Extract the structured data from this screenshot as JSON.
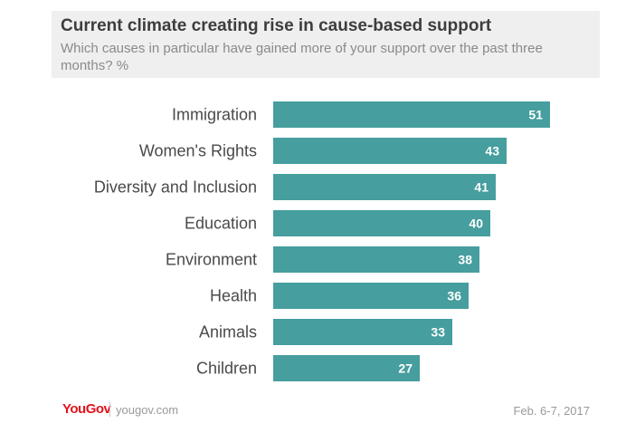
{
  "title": "Current climate creating rise in cause-based support",
  "subtitle": "Which causes in particular have gained more of your support over the past three months? %",
  "footer": {
    "brand": "YouGov",
    "url": "yougov.com",
    "date": "Feb. 6-7, 2017"
  },
  "colors": {
    "bar": "#469e9e",
    "label": "#4a4a4a",
    "value": "#ffffff"
  },
  "chart_data": {
    "type": "bar",
    "orientation": "horizontal",
    "categories": [
      "Immigration",
      "Women's Rights",
      "Diversity and Inclusion",
      "Education",
      "Environment",
      "Health",
      "Animals",
      "Children"
    ],
    "values": [
      51,
      43,
      41,
      40,
      38,
      36,
      33,
      27
    ],
    "data_labels": true,
    "grid": false
  }
}
